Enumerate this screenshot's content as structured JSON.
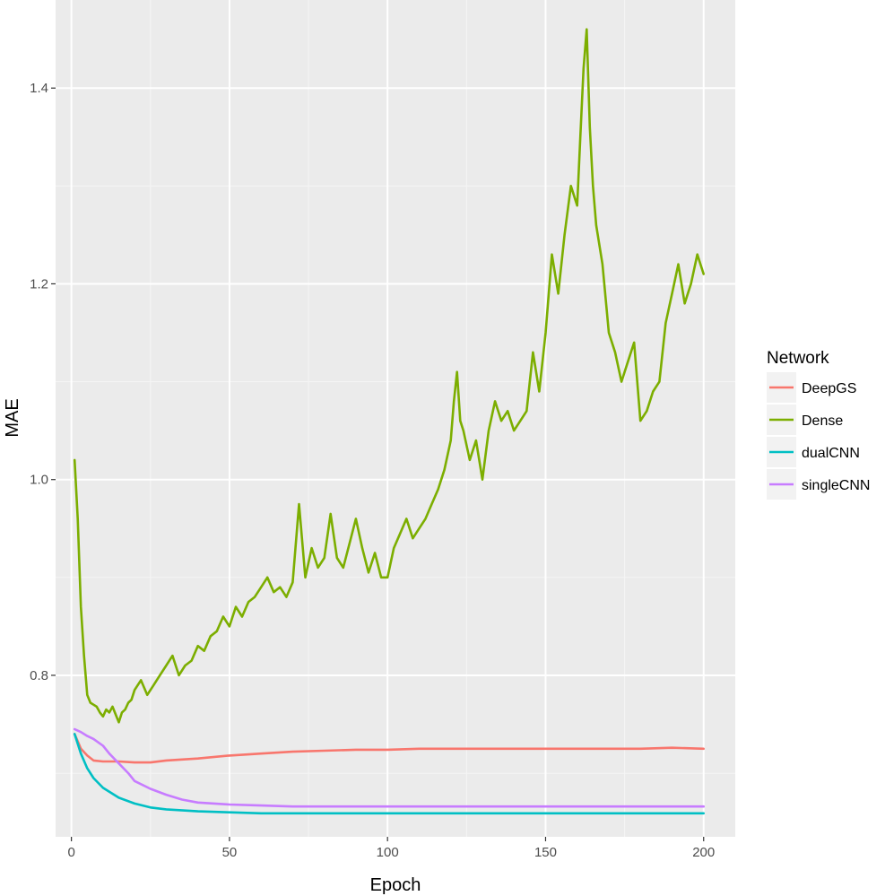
{
  "chart_data": {
    "type": "line",
    "title": "",
    "xlabel": "Epoch",
    "ylabel": "MAE",
    "xlim": [
      -5,
      210
    ],
    "ylim": [
      0.635,
      1.49
    ],
    "x_ticks": [
      0,
      50,
      100,
      150,
      200
    ],
    "x_tick_labels": [
      "0",
      "50",
      "100",
      "150",
      "200"
    ],
    "y_ticks": [
      0.8,
      1.0,
      1.2,
      1.4
    ],
    "y_tick_labels": [
      "0.8",
      "1.0",
      "1.2",
      "1.4"
    ],
    "grid": true,
    "legend": {
      "title": "Network",
      "position": "right"
    },
    "series": [
      {
        "name": "DeepGS",
        "color": "#F8766D",
        "x": [
          1,
          3,
          5,
          7,
          10,
          15,
          20,
          25,
          30,
          40,
          50,
          60,
          70,
          80,
          90,
          100,
          110,
          120,
          130,
          140,
          150,
          160,
          170,
          180,
          190,
          200
        ],
        "y": [
          0.74,
          0.725,
          0.718,
          0.713,
          0.712,
          0.712,
          0.711,
          0.711,
          0.713,
          0.715,
          0.718,
          0.72,
          0.722,
          0.723,
          0.724,
          0.724,
          0.725,
          0.725,
          0.725,
          0.725,
          0.725,
          0.725,
          0.725,
          0.725,
          0.726,
          0.725
        ]
      },
      {
        "name": "Dense",
        "color": "#7CAE00",
        "x": [
          1,
          2,
          3,
          4,
          5,
          6,
          7,
          8,
          9,
          10,
          11,
          12,
          13,
          14,
          15,
          16,
          17,
          18,
          19,
          20,
          22,
          24,
          26,
          28,
          30,
          32,
          34,
          36,
          38,
          40,
          42,
          44,
          46,
          48,
          50,
          52,
          54,
          56,
          58,
          60,
          62,
          64,
          66,
          68,
          70,
          72,
          74,
          76,
          78,
          80,
          82,
          84,
          86,
          88,
          90,
          92,
          94,
          96,
          98,
          100,
          102,
          104,
          106,
          108,
          110,
          112,
          114,
          116,
          118,
          120,
          121,
          122,
          123,
          124,
          126,
          128,
          130,
          132,
          134,
          136,
          138,
          140,
          142,
          144,
          146,
          148,
          150,
          152,
          154,
          156,
          158,
          160,
          161,
          162,
          163,
          164,
          165,
          166,
          168,
          170,
          172,
          174,
          176,
          178,
          180,
          182,
          184,
          186,
          188,
          190,
          192,
          194,
          196,
          198,
          199,
          200
        ],
        "y": [
          1.02,
          0.96,
          0.87,
          0.82,
          0.78,
          0.772,
          0.77,
          0.768,
          0.762,
          0.758,
          0.765,
          0.762,
          0.768,
          0.76,
          0.752,
          0.762,
          0.765,
          0.772,
          0.775,
          0.785,
          0.795,
          0.78,
          0.79,
          0.8,
          0.81,
          0.82,
          0.8,
          0.81,
          0.815,
          0.83,
          0.825,
          0.84,
          0.845,
          0.86,
          0.85,
          0.87,
          0.86,
          0.875,
          0.88,
          0.89,
          0.9,
          0.885,
          0.89,
          0.88,
          0.895,
          0.975,
          0.9,
          0.93,
          0.91,
          0.92,
          0.965,
          0.92,
          0.91,
          0.935,
          0.96,
          0.93,
          0.905,
          0.925,
          0.9,
          0.9,
          0.93,
          0.945,
          0.96,
          0.94,
          0.95,
          0.96,
          0.975,
          0.99,
          1.01,
          1.04,
          1.08,
          1.11,
          1.06,
          1.05,
          1.02,
          1.04,
          1.0,
          1.05,
          1.08,
          1.06,
          1.07,
          1.05,
          1.06,
          1.07,
          1.13,
          1.09,
          1.15,
          1.23,
          1.19,
          1.25,
          1.3,
          1.28,
          1.35,
          1.42,
          1.46,
          1.36,
          1.3,
          1.26,
          1.22,
          1.15,
          1.13,
          1.1,
          1.12,
          1.14,
          1.06,
          1.07,
          1.09,
          1.1,
          1.16,
          1.19,
          1.22,
          1.18,
          1.2,
          1.23,
          1.22,
          1.21
        ]
      },
      {
        "name": "dualCNN",
        "color": "#00BFC4",
        "x": [
          1,
          3,
          5,
          7,
          10,
          15,
          20,
          25,
          30,
          40,
          50,
          60,
          70,
          80,
          90,
          100,
          110,
          120,
          130,
          140,
          150,
          160,
          170,
          180,
          190,
          200
        ],
        "y": [
          0.74,
          0.72,
          0.705,
          0.695,
          0.685,
          0.675,
          0.669,
          0.665,
          0.663,
          0.661,
          0.66,
          0.659,
          0.659,
          0.659,
          0.659,
          0.659,
          0.659,
          0.659,
          0.659,
          0.659,
          0.659,
          0.659,
          0.659,
          0.659,
          0.659,
          0.659
        ]
      },
      {
        "name": "singleCNN",
        "color": "#C77CFF",
        "x": [
          1,
          3,
          5,
          7,
          10,
          12,
          15,
          18,
          20,
          25,
          30,
          35,
          40,
          50,
          60,
          70,
          80,
          90,
          100,
          110,
          120,
          130,
          140,
          150,
          160,
          170,
          180,
          190,
          200
        ],
        "y": [
          0.745,
          0.742,
          0.738,
          0.735,
          0.728,
          0.72,
          0.71,
          0.7,
          0.692,
          0.684,
          0.678,
          0.673,
          0.67,
          0.668,
          0.667,
          0.666,
          0.666,
          0.666,
          0.666,
          0.666,
          0.666,
          0.666,
          0.666,
          0.666,
          0.666,
          0.666,
          0.666,
          0.666,
          0.666
        ]
      }
    ]
  }
}
